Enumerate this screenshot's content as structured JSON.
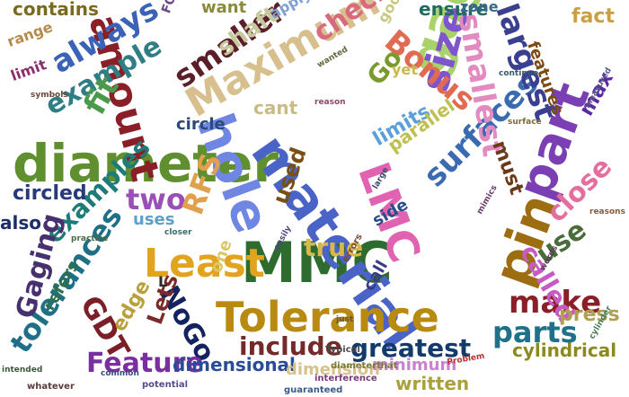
{
  "words": [
    {
      "text": "MMC",
      "color": "#2e6b2e"
    },
    {
      "text": "diameter",
      "color": "#5f8f2f"
    },
    {
      "text": "material",
      "color": "#4a63c6"
    },
    {
      "text": "hole",
      "color": "#6f86e3"
    },
    {
      "text": "gage",
      "color": "#a9d26b"
    },
    {
      "text": "Tolerance",
      "color": "#b88a10"
    },
    {
      "text": "part",
      "color": "#7a3fb2"
    },
    {
      "text": "LMC",
      "color": "#e062b0"
    },
    {
      "text": "Maximum",
      "color": "#d8c08e"
    },
    {
      "text": "pin",
      "color": "#9d6d12"
    },
    {
      "text": "Least",
      "color": "#e2a41d"
    },
    {
      "text": "size",
      "color": "#7f55cc"
    },
    {
      "text": "amount",
      "color": "#8a1f28"
    },
    {
      "text": "surfaces",
      "color": "#3a6bb0"
    },
    {
      "text": "largest",
      "color": "#3a3f8f"
    },
    {
      "text": "smaller",
      "color": "#5b1f2a"
    },
    {
      "text": "smallest",
      "color": "#e38ac0"
    },
    {
      "text": "example",
      "color": "#2e7e83"
    },
    {
      "text": "always",
      "color": "#3b62b6"
    },
    {
      "text": "examples",
      "color": "#1e7b78"
    },
    {
      "text": "tolerances",
      "color": "#1f6f87"
    },
    {
      "text": "Bonus",
      "color": "#e06a52"
    },
    {
      "text": "Gaging",
      "color": "#46306e"
    },
    {
      "text": "GDT",
      "color": "#7a1f28"
    },
    {
      "text": "fit",
      "color": "#4b9a4b"
    },
    {
      "text": "two",
      "color": "#9a4fb6"
    },
    {
      "text": "RFS",
      "color": "#e0a04c"
    },
    {
      "text": "NoGo",
      "color": "#14235f"
    },
    {
      "text": "make",
      "color": "#8a1f28"
    },
    {
      "text": "parts",
      "color": "#20708a"
    },
    {
      "text": "greatest",
      "color": "#143a6b"
    },
    {
      "text": "close",
      "color": "#e46f9e"
    },
    {
      "text": "Feature",
      "color": "#7a2fa0"
    },
    {
      "text": "include",
      "color": "#722a2a"
    },
    {
      "text": "check",
      "color": "#d86a7e"
    },
    {
      "text": "shaft",
      "color": "#c9c9a0"
    },
    {
      "text": "Go",
      "color": "#7a9a2c"
    },
    {
      "text": "used",
      "color": "#7a5012"
    },
    {
      "text": "true",
      "color": "#d8b84a"
    },
    {
      "text": "use",
      "color": "#4a6c3a"
    },
    {
      "text": "called",
      "color": "#c75bc4"
    },
    {
      "text": "press",
      "color": "#b0a050"
    },
    {
      "text": "circled",
      "color": "#283a7a"
    },
    {
      "text": "dimensional",
      "color": "#2a4c96"
    },
    {
      "text": "dimension",
      "color": "#d8c28c"
    },
    {
      "text": "minimum",
      "color": "#c982cf"
    },
    {
      "text": "written",
      "color": "#a9a13a"
    },
    {
      "text": "cylindrical",
      "color": "#8a8a1f"
    },
    {
      "text": "refers",
      "color": "#2a6f4a"
    },
    {
      "text": "edge",
      "color": "#b8a03a"
    },
    {
      "text": "Lets",
      "color": "#7a2a2a"
    },
    {
      "text": "contains",
      "color": "#7a6a1e"
    },
    {
      "text": "range",
      "color": "#b58a4a"
    },
    {
      "text": "limit",
      "color": "#8a2f6a"
    },
    {
      "text": "also",
      "color": "#1a2f6a"
    },
    {
      "text": "features",
      "color": "#7a4b12"
    },
    {
      "text": "max",
      "color": "#5a2aa0"
    },
    {
      "text": "fact",
      "color": "#c9a043"
    },
    {
      "text": "must",
      "color": "#6a3a1a"
    },
    {
      "text": "side",
      "color": "#2a4c8a"
    },
    {
      "text": "limits",
      "color": "#5ba0d8"
    },
    {
      "text": "parallel",
      "color": "#c0c050"
    },
    {
      "text": "ensure",
      "color": "#1f6b5f"
    },
    {
      "text": "want",
      "color": "#8a8a3a"
    },
    {
      "text": "apply",
      "color": "#7fa0d0"
    },
    {
      "text": "yet",
      "color": "#c9b84a"
    },
    {
      "text": "cant",
      "color": "#c9bb86"
    },
    {
      "text": "circle",
      "color": "#2a4a7a"
    },
    {
      "text": "uses",
      "color": "#5fa0c8"
    },
    {
      "text": "one",
      "color": "#d8c86a"
    },
    {
      "text": "call",
      "color": "#3a3a8a"
    },
    {
      "text": "zone",
      "color": "#3a6a8a"
    },
    {
      "text": "good",
      "color": "#c8c880"
    },
    {
      "text": "FOS",
      "color": "#6a4a8a"
    },
    {
      "text": "L",
      "color": "#2a2a2a"
    },
    {
      "text": "Problem",
      "color": "#b03030"
    },
    {
      "text": "Typical",
      "color": "#4a4a4a"
    },
    {
      "text": "potential",
      "color": "#5a4a8a"
    },
    {
      "text": "interference",
      "color": "#7a3a7a"
    },
    {
      "text": "guaranteed",
      "color": "#3a5a8a"
    },
    {
      "text": "diameterthat",
      "color": "#7a7a3a"
    },
    {
      "text": "whatever",
      "color": "#5a3a3a"
    },
    {
      "text": "intended",
      "color": "#3a5a3a"
    },
    {
      "text": "common",
      "color": "#3a4a7a"
    },
    {
      "text": "reasons",
      "color": "#8a5a3a"
    },
    {
      "text": "measured",
      "color": "#5a5a8a"
    },
    {
      "text": "cylinder",
      "color": "#4a7a5a"
    },
    {
      "text": "reason",
      "color": "#8a4a6a"
    },
    {
      "text": "wanted",
      "color": "#5a6a3a"
    },
    {
      "text": "easily",
      "color": "#4a4a7a"
    },
    {
      "text": "errors",
      "color": "#7a4a3a"
    },
    {
      "text": "closer",
      "color": "#3a6a6a"
    },
    {
      "text": "mimics",
      "color": "#6a3a6a"
    },
    {
      "text": "practice",
      "color": "#4a6a4a"
    },
    {
      "text": "symbols",
      "color": "#6a4a3a"
    },
    {
      "text": "large",
      "color": "#3a4a6a"
    },
    {
      "text": "words",
      "color": "#5a3a5a"
    },
    {
      "text": "surface",
      "color": "#7a6a3a"
    },
    {
      "text": "continue",
      "color": "#3a5a6a"
    },
    {
      "text": "just",
      "color": "#5a5a3a"
    }
  ]
}
